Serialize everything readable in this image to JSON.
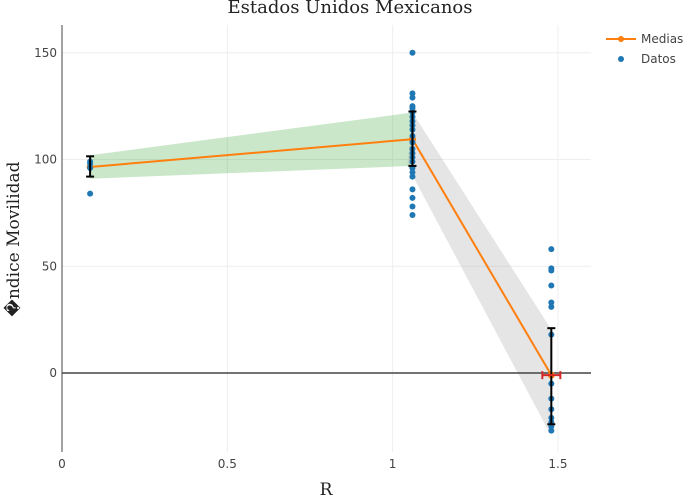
{
  "chart_data": {
    "type": "line",
    "title": "Estados Unidos Mexicanos",
    "xlabel": "R",
    "ylabel": "�ndice Movilidad",
    "xlim": [
      0,
      1.6
    ],
    "ylim": [
      -37,
      163
    ],
    "x_ticks": [
      "0",
      "0.5",
      "1",
      "1.5"
    ],
    "y_ticks": [
      "0",
      "50",
      "100",
      "150"
    ],
    "grid": true,
    "legend_position": "top-right",
    "colors": {
      "mean": "#ff7f0e",
      "data": "#1f77b4",
      "band_first": "#2ca02c",
      "band_rest": "#999999",
      "error_bar": "#000000",
      "x_error_bar": "#d62728",
      "zero_line": "#444444",
      "grid": "#eeeeee"
    },
    "series": [
      {
        "name": "Medias",
        "x": [
          0.085,
          1.06,
          1.48
        ],
        "y": [
          96.5,
          109.5,
          -1
        ],
        "y_error_low": [
          92,
          97,
          -24
        ],
        "y_error_high": [
          101.5,
          122.5,
          21
        ],
        "band_low": [
          91,
          97
        ],
        "band_high": [
          102,
          122
        ]
      },
      {
        "name": "Datos",
        "points": [
          [
            0.085,
            84
          ],
          [
            0.085,
            96
          ],
          [
            0.085,
            98
          ],
          [
            0.085,
            99
          ],
          [
            1.06,
            150
          ],
          [
            1.06,
            131
          ],
          [
            1.06,
            129
          ],
          [
            1.06,
            125
          ],
          [
            1.06,
            124
          ],
          [
            1.06,
            122
          ],
          [
            1.06,
            120
          ],
          [
            1.06,
            118
          ],
          [
            1.06,
            116
          ],
          [
            1.06,
            114
          ],
          [
            1.06,
            111
          ],
          [
            1.06,
            108
          ],
          [
            1.06,
            105
          ],
          [
            1.06,
            103
          ],
          [
            1.06,
            101
          ],
          [
            1.06,
            99
          ],
          [
            1.06,
            96
          ],
          [
            1.06,
            94
          ],
          [
            1.06,
            92
          ],
          [
            1.06,
            86
          ],
          [
            1.06,
            82
          ],
          [
            1.06,
            78
          ],
          [
            1.06,
            74
          ],
          [
            1.48,
            58
          ],
          [
            1.48,
            49
          ],
          [
            1.48,
            48
          ],
          [
            1.48,
            41
          ],
          [
            1.48,
            33
          ],
          [
            1.48,
            31
          ],
          [
            1.48,
            18
          ],
          [
            1.48,
            -5
          ],
          [
            1.48,
            -12
          ],
          [
            1.48,
            -17
          ],
          [
            1.48,
            -21
          ],
          [
            1.48,
            -23
          ],
          [
            1.48,
            -25
          ],
          [
            1.48,
            -27
          ]
        ]
      }
    ]
  }
}
